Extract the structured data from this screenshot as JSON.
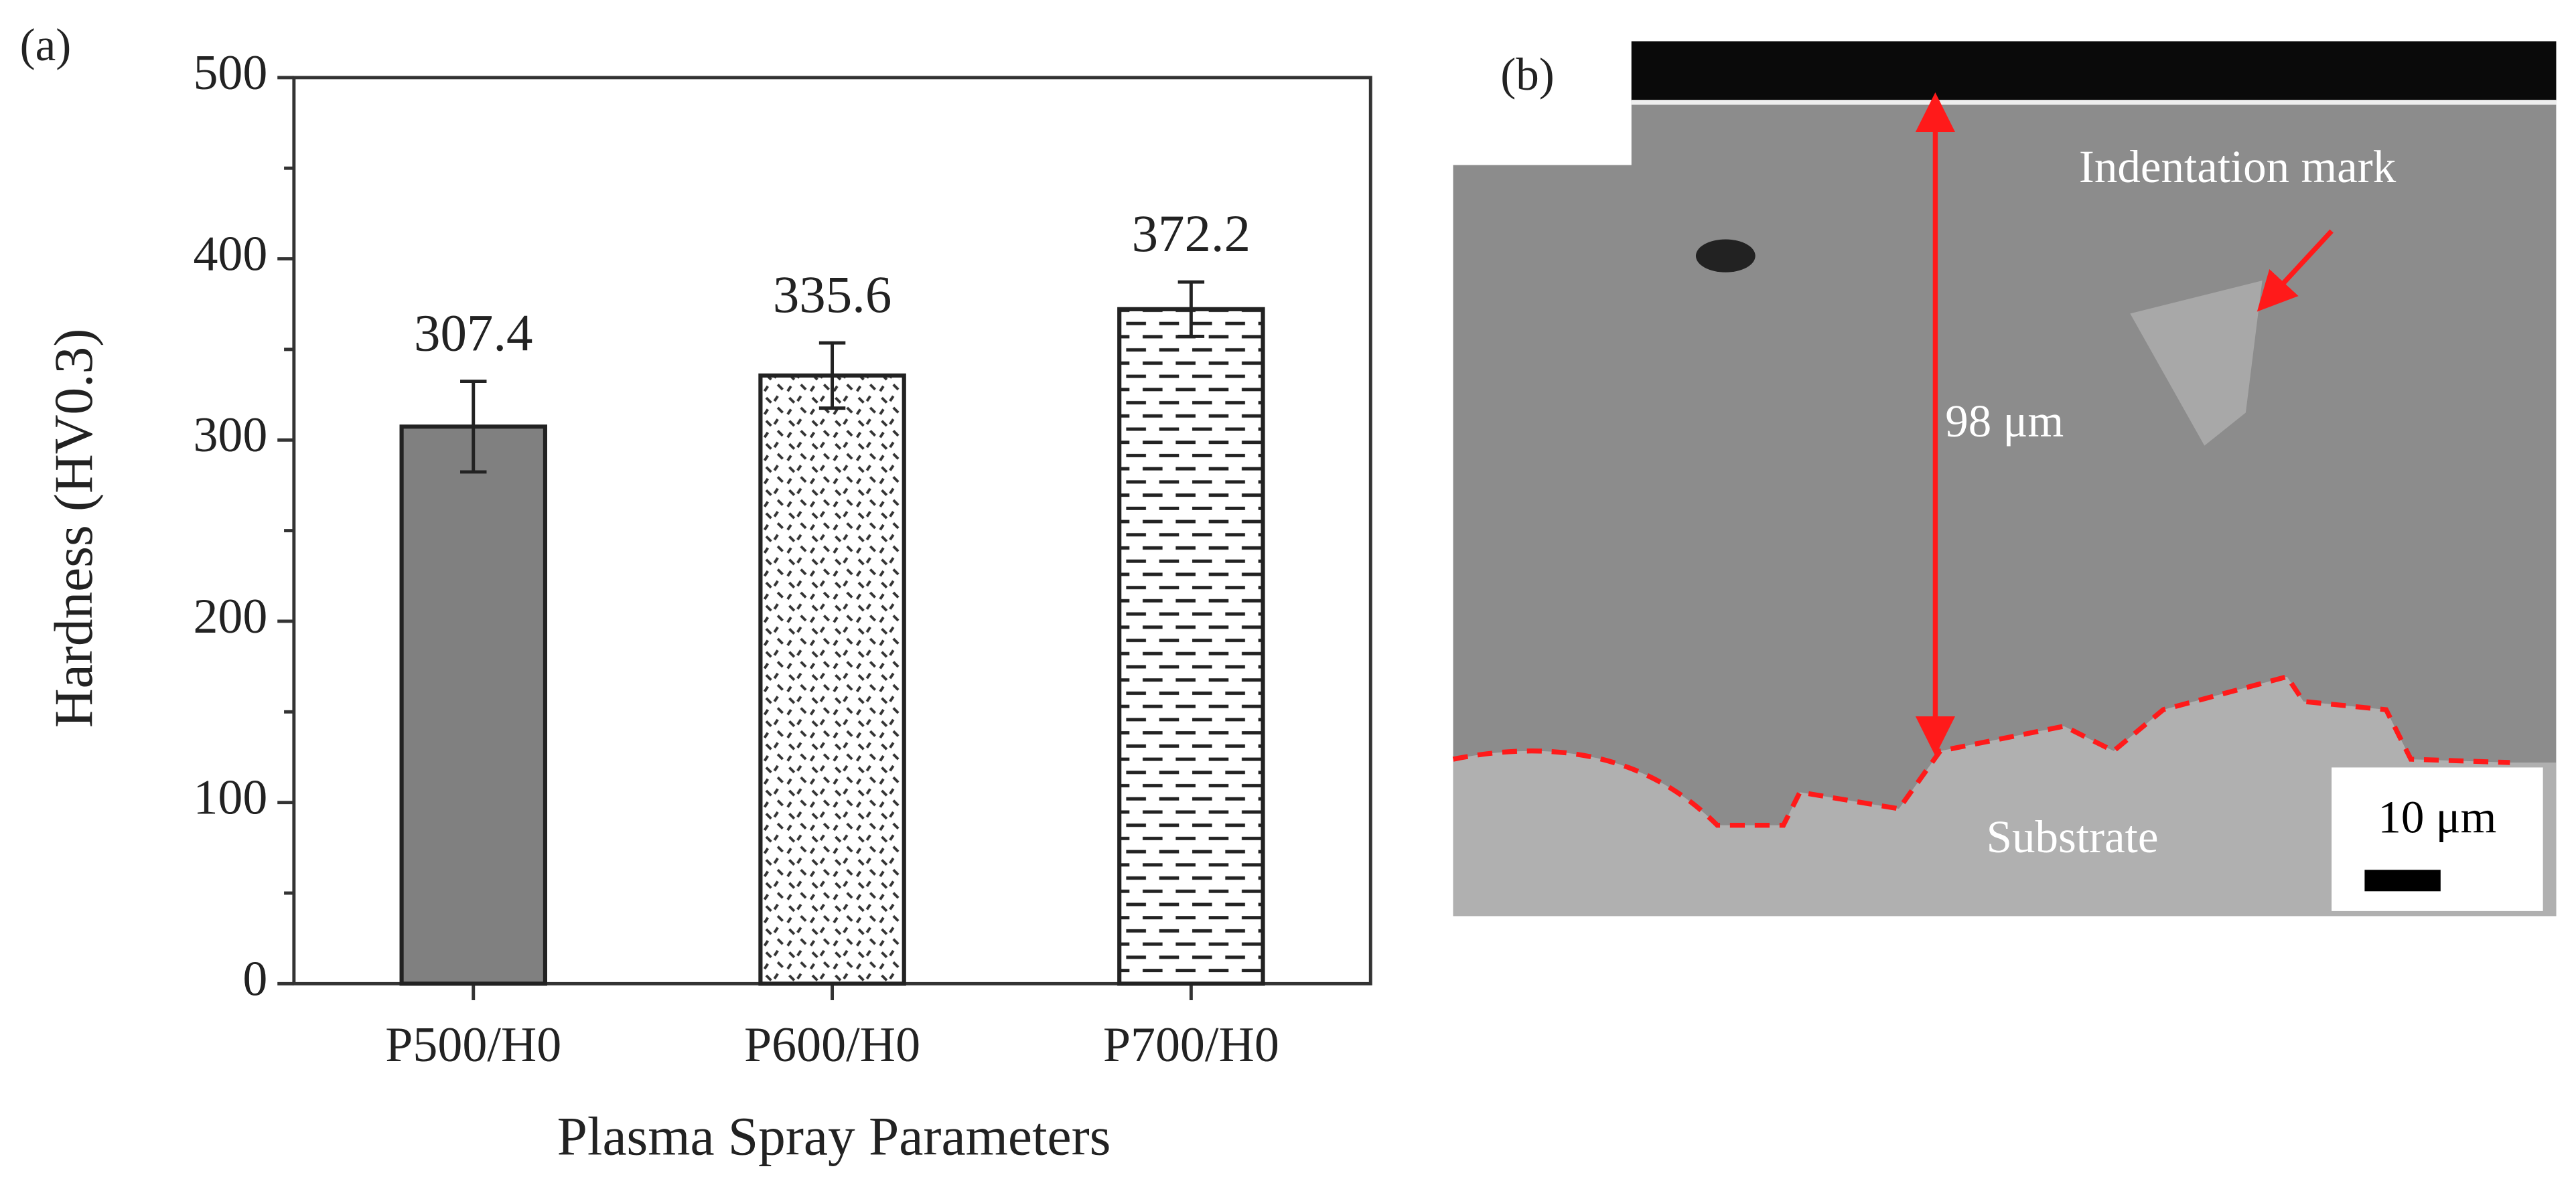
{
  "chart_data": {
    "type": "bar",
    "panel_label": "(a)",
    "categories": [
      "P500/H0",
      "P600/H0",
      "P700/H0"
    ],
    "values": [
      307.4,
      335.6,
      372.2
    ],
    "errors": [
      25,
      18,
      15
    ],
    "color": "#808080",
    "patterns": [
      "solid",
      "dots",
      "dashes"
    ],
    "xlabel": "Plasma Spray Parameters",
    "ylabel": "Hardness (HV0.3)",
    "ylim": [
      0,
      500
    ],
    "yticks": [
      0,
      100,
      200,
      300,
      400,
      500
    ]
  },
  "micrograph": {
    "panel_label": "(b)",
    "annotation": "Indentation mark",
    "thickness": "98 μm",
    "region": "Substrate",
    "scale_bar": "10 μm"
  }
}
